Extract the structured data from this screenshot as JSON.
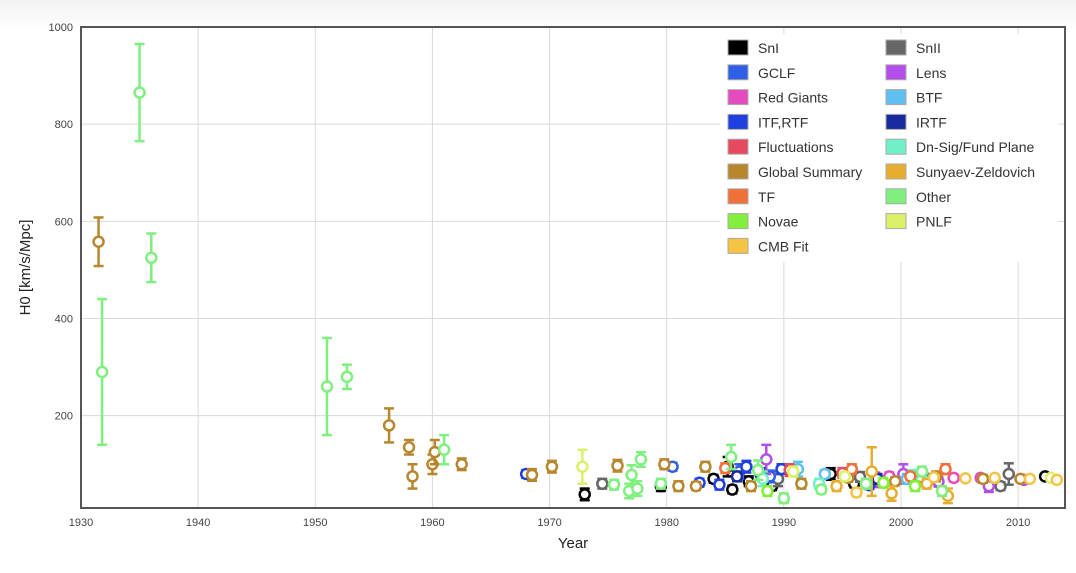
{
  "chart_data": {
    "type": "scatter",
    "xlabel": "Year",
    "ylabel": "H0 [km/s/Mpc]",
    "xlim": [
      1930,
      2014
    ],
    "ylim": [
      10,
      1000
    ],
    "x_ticks": [
      1930,
      1940,
      1950,
      1960,
      1970,
      1980,
      1990,
      2000,
      2010
    ],
    "y_ticks": [
      200,
      400,
      600,
      800,
      1000
    ],
    "grid": true,
    "legend_position": "top-right",
    "error_bars": true,
    "series": [
      {
        "name": "SnI",
        "color": "#000000",
        "points": [
          {
            "x": 1973,
            "y": 38,
            "yerr": 12
          },
          {
            "x": 1979.5,
            "y": 55,
            "yerr": 10
          },
          {
            "x": 1984,
            "y": 70,
            "yerr": 8
          },
          {
            "x": 1985.2,
            "y": 95,
            "yerr": 20
          },
          {
            "x": 1985.6,
            "y": 48,
            "yerr": 8
          },
          {
            "x": 1987,
            "y": 65,
            "yerr": 10
          },
          {
            "x": 1989,
            "y": 55,
            "yerr": 8
          },
          {
            "x": 1994,
            "y": 80,
            "yerr": 12
          },
          {
            "x": 1996,
            "y": 60,
            "yerr": 7
          },
          {
            "x": 2012.3,
            "y": 75,
            "yerr": 4
          }
        ]
      },
      {
        "name": "SnII",
        "color": "#666666",
        "points": [
          {
            "x": 1974.5,
            "y": 60,
            "yerr": 10
          },
          {
            "x": 1989.5,
            "y": 70,
            "yerr": 15
          },
          {
            "x": 1996.5,
            "y": 74,
            "yerr": 10
          },
          {
            "x": 2008.5,
            "y": 55,
            "yerr": 8
          },
          {
            "x": 2009.2,
            "y": 80,
            "yerr": 22
          }
        ]
      },
      {
        "name": "GCLF",
        "color": "#2f5fe6",
        "points": [
          {
            "x": 1980.5,
            "y": 95,
            "yerr": 8
          },
          {
            "x": 1986.2,
            "y": 85,
            "yerr": 15
          },
          {
            "x": 1988.8,
            "y": 75,
            "yerr": 12
          },
          {
            "x": 2002.5,
            "y": 70,
            "yerr": 10
          }
        ]
      },
      {
        "name": "Lens",
        "color": "#b44ee8",
        "points": [
          {
            "x": 1988.5,
            "y": 110,
            "yerr": 30
          },
          {
            "x": 1997.8,
            "y": 68,
            "yerr": 15
          },
          {
            "x": 2000.2,
            "y": 80,
            "yerr": 20
          },
          {
            "x": 2003.2,
            "y": 64,
            "yerr": 10
          },
          {
            "x": 2007.5,
            "y": 55,
            "yerr": 12
          },
          {
            "x": 2010.5,
            "y": 68,
            "yerr": 8
          }
        ]
      },
      {
        "name": "Red Giants",
        "color": "#e64bbd",
        "points": [
          {
            "x": 1999,
            "y": 75,
            "yerr": 8
          },
          {
            "x": 2004.5,
            "y": 72,
            "yerr": 7
          },
          {
            "x": 2006.8,
            "y": 72,
            "yerr": 6
          }
        ]
      },
      {
        "name": "BTF",
        "color": "#5fbff0",
        "points": [
          {
            "x": 1991.2,
            "y": 90,
            "yerr": 15
          },
          {
            "x": 1993.5,
            "y": 80,
            "yerr": 8
          },
          {
            "x": 2000.5,
            "y": 70,
            "yerr": 10
          }
        ]
      },
      {
        "name": "ITF,RTF",
        "color": "#1f3fe0",
        "points": [
          {
            "x": 1968,
            "y": 80,
            "yerr": 8
          },
          {
            "x": 1982.8,
            "y": 62,
            "yerr": 8
          },
          {
            "x": 1984.5,
            "y": 58,
            "yerr": 10
          },
          {
            "x": 1986.8,
            "y": 95,
            "yerr": 12
          },
          {
            "x": 1989.8,
            "y": 90,
            "yerr": 10
          },
          {
            "x": 1997.3,
            "y": 57,
            "yerr": 8
          }
        ]
      },
      {
        "name": "IRTF",
        "color": "#182a9e",
        "points": [
          {
            "x": 1986,
            "y": 75,
            "yerr": 10
          },
          {
            "x": 1988,
            "y": 80,
            "yerr": 12
          },
          {
            "x": 1998,
            "y": 70,
            "yerr": 10
          }
        ]
      },
      {
        "name": "Fluctuations",
        "color": "#e64a5e",
        "points": [
          {
            "x": 1990.5,
            "y": 88,
            "yerr": 12
          },
          {
            "x": 1995,
            "y": 82,
            "yerr": 10
          },
          {
            "x": 2001.5,
            "y": 72,
            "yerr": 8
          }
        ]
      },
      {
        "name": "Dn-Sig/Fund Plane",
        "color": "#6ff0c8",
        "points": [
          {
            "x": 1988.2,
            "y": 70,
            "yerr": 15
          },
          {
            "x": 1993,
            "y": 60,
            "yerr": 10
          },
          {
            "x": 2001,
            "y": 78,
            "yerr": 10
          }
        ]
      },
      {
        "name": "Global Summary",
        "color": "#b8862d",
        "points": [
          {
            "x": 1931.5,
            "y": 558,
            "yerr": 50
          },
          {
            "x": 1956.3,
            "y": 180,
            "yerr": 35
          },
          {
            "x": 1958,
            "y": 135,
            "yerr": 15
          },
          {
            "x": 1958.3,
            "y": 75,
            "yerr": 25
          },
          {
            "x": 1960,
            "y": 100,
            "yerr": 20
          },
          {
            "x": 1960.2,
            "y": 125,
            "yerr": 25
          },
          {
            "x": 1962.5,
            "y": 100,
            "yerr": 12
          },
          {
            "x": 1968.5,
            "y": 78,
            "yerr": 12
          },
          {
            "x": 1970.2,
            "y": 95,
            "yerr": 12
          },
          {
            "x": 1975.8,
            "y": 97,
            "yerr": 12
          },
          {
            "x": 1979.8,
            "y": 100,
            "yerr": 10
          },
          {
            "x": 1981,
            "y": 55,
            "yerr": 10
          },
          {
            "x": 1982.5,
            "y": 55,
            "yerr": 8
          },
          {
            "x": 1983.3,
            "y": 95,
            "yerr": 10
          },
          {
            "x": 1987.2,
            "y": 55,
            "yerr": 10
          },
          {
            "x": 1991.5,
            "y": 60,
            "yerr": 10
          },
          {
            "x": 1995.5,
            "y": 72,
            "yerr": 8
          },
          {
            "x": 1999.5,
            "y": 65,
            "yerr": 8
          },
          {
            "x": 2003,
            "y": 75,
            "yerr": 10
          },
          {
            "x": 2007,
            "y": 70,
            "yerr": 8
          },
          {
            "x": 2010.2,
            "y": 70,
            "yerr": 6
          }
        ]
      },
      {
        "name": "Sunyaev-Zeldovich",
        "color": "#e6ad2f",
        "points": [
          {
            "x": 1994.5,
            "y": 55,
            "yerr": 10
          },
          {
            "x": 1997.5,
            "y": 85,
            "yerr": 50
          },
          {
            "x": 1999.2,
            "y": 40,
            "yerr": 15
          },
          {
            "x": 2002.2,
            "y": 60,
            "yerr": 10
          },
          {
            "x": 2004,
            "y": 35,
            "yerr": 15
          }
        ]
      },
      {
        "name": "TF",
        "color": "#f0703a",
        "points": [
          {
            "x": 1985,
            "y": 92,
            "yerr": 10
          },
          {
            "x": 1995.8,
            "y": 90,
            "yerr": 10
          },
          {
            "x": 2000.8,
            "y": 75,
            "yerr": 8
          },
          {
            "x": 2003.8,
            "y": 90,
            "yerr": 10
          }
        ]
      },
      {
        "name": "Other",
        "color": "#7ff07f",
        "points": [
          {
            "x": 1931.8,
            "y": 290,
            "yerr": 150
          },
          {
            "x": 1935,
            "y": 865,
            "yerr": 100
          },
          {
            "x": 1936,
            "y": 525,
            "yerr": 50
          },
          {
            "x": 1951,
            "y": 260,
            "yerr": 100
          },
          {
            "x": 1952.7,
            "y": 280,
            "yerr": 25
          },
          {
            "x": 1961,
            "y": 130,
            "yerr": 30
          },
          {
            "x": 1975.5,
            "y": 58,
            "yerr": 10
          },
          {
            "x": 1976.8,
            "y": 45,
            "yerr": 15
          },
          {
            "x": 1977,
            "y": 78,
            "yerr": 20
          },
          {
            "x": 1977.5,
            "y": 50,
            "yerr": 15
          },
          {
            "x": 1977.8,
            "y": 110,
            "yerr": 15
          },
          {
            "x": 1979.5,
            "y": 60,
            "yerr": 10
          },
          {
            "x": 1985.5,
            "y": 115,
            "yerr": 25
          },
          {
            "x": 1987.8,
            "y": 88,
            "yerr": 20
          },
          {
            "x": 1990,
            "y": 30,
            "yerr": 10
          },
          {
            "x": 1993.2,
            "y": 48,
            "yerr": 8
          },
          {
            "x": 1997,
            "y": 60,
            "yerr": 10
          },
          {
            "x": 2001.8,
            "y": 85,
            "yerr": 10
          },
          {
            "x": 2003.5,
            "y": 45,
            "yerr": 10
          }
        ]
      },
      {
        "name": "Novae",
        "color": "#82ef3a",
        "points": [
          {
            "x": 1988.6,
            "y": 45,
            "yerr": 10
          },
          {
            "x": 1998.5,
            "y": 62,
            "yerr": 10
          },
          {
            "x": 2001.2,
            "y": 55,
            "yerr": 10
          }
        ]
      },
      {
        "name": "PNLF",
        "color": "#dcf06a",
        "points": [
          {
            "x": 1972.8,
            "y": 95,
            "yerr": 35
          },
          {
            "x": 1990.8,
            "y": 85,
            "yerr": 10
          },
          {
            "x": 1995.2,
            "y": 75,
            "yerr": 8
          },
          {
            "x": 2012.8,
            "y": 72,
            "yerr": 5
          }
        ]
      },
      {
        "name": "CMB Fit",
        "color": "#f5c442",
        "points": [
          {
            "x": 1996.2,
            "y": 42,
            "yerr": 8
          },
          {
            "x": 2002.8,
            "y": 73,
            "yerr": 5
          },
          {
            "x": 2005.5,
            "y": 71,
            "yerr": 3
          },
          {
            "x": 2008,
            "y": 72,
            "yerr": 3
          },
          {
            "x": 2011,
            "y": 70,
            "yerr": 2
          },
          {
            "x": 2013.3,
            "y": 68,
            "yerr": 2
          }
        ]
      }
    ]
  }
}
